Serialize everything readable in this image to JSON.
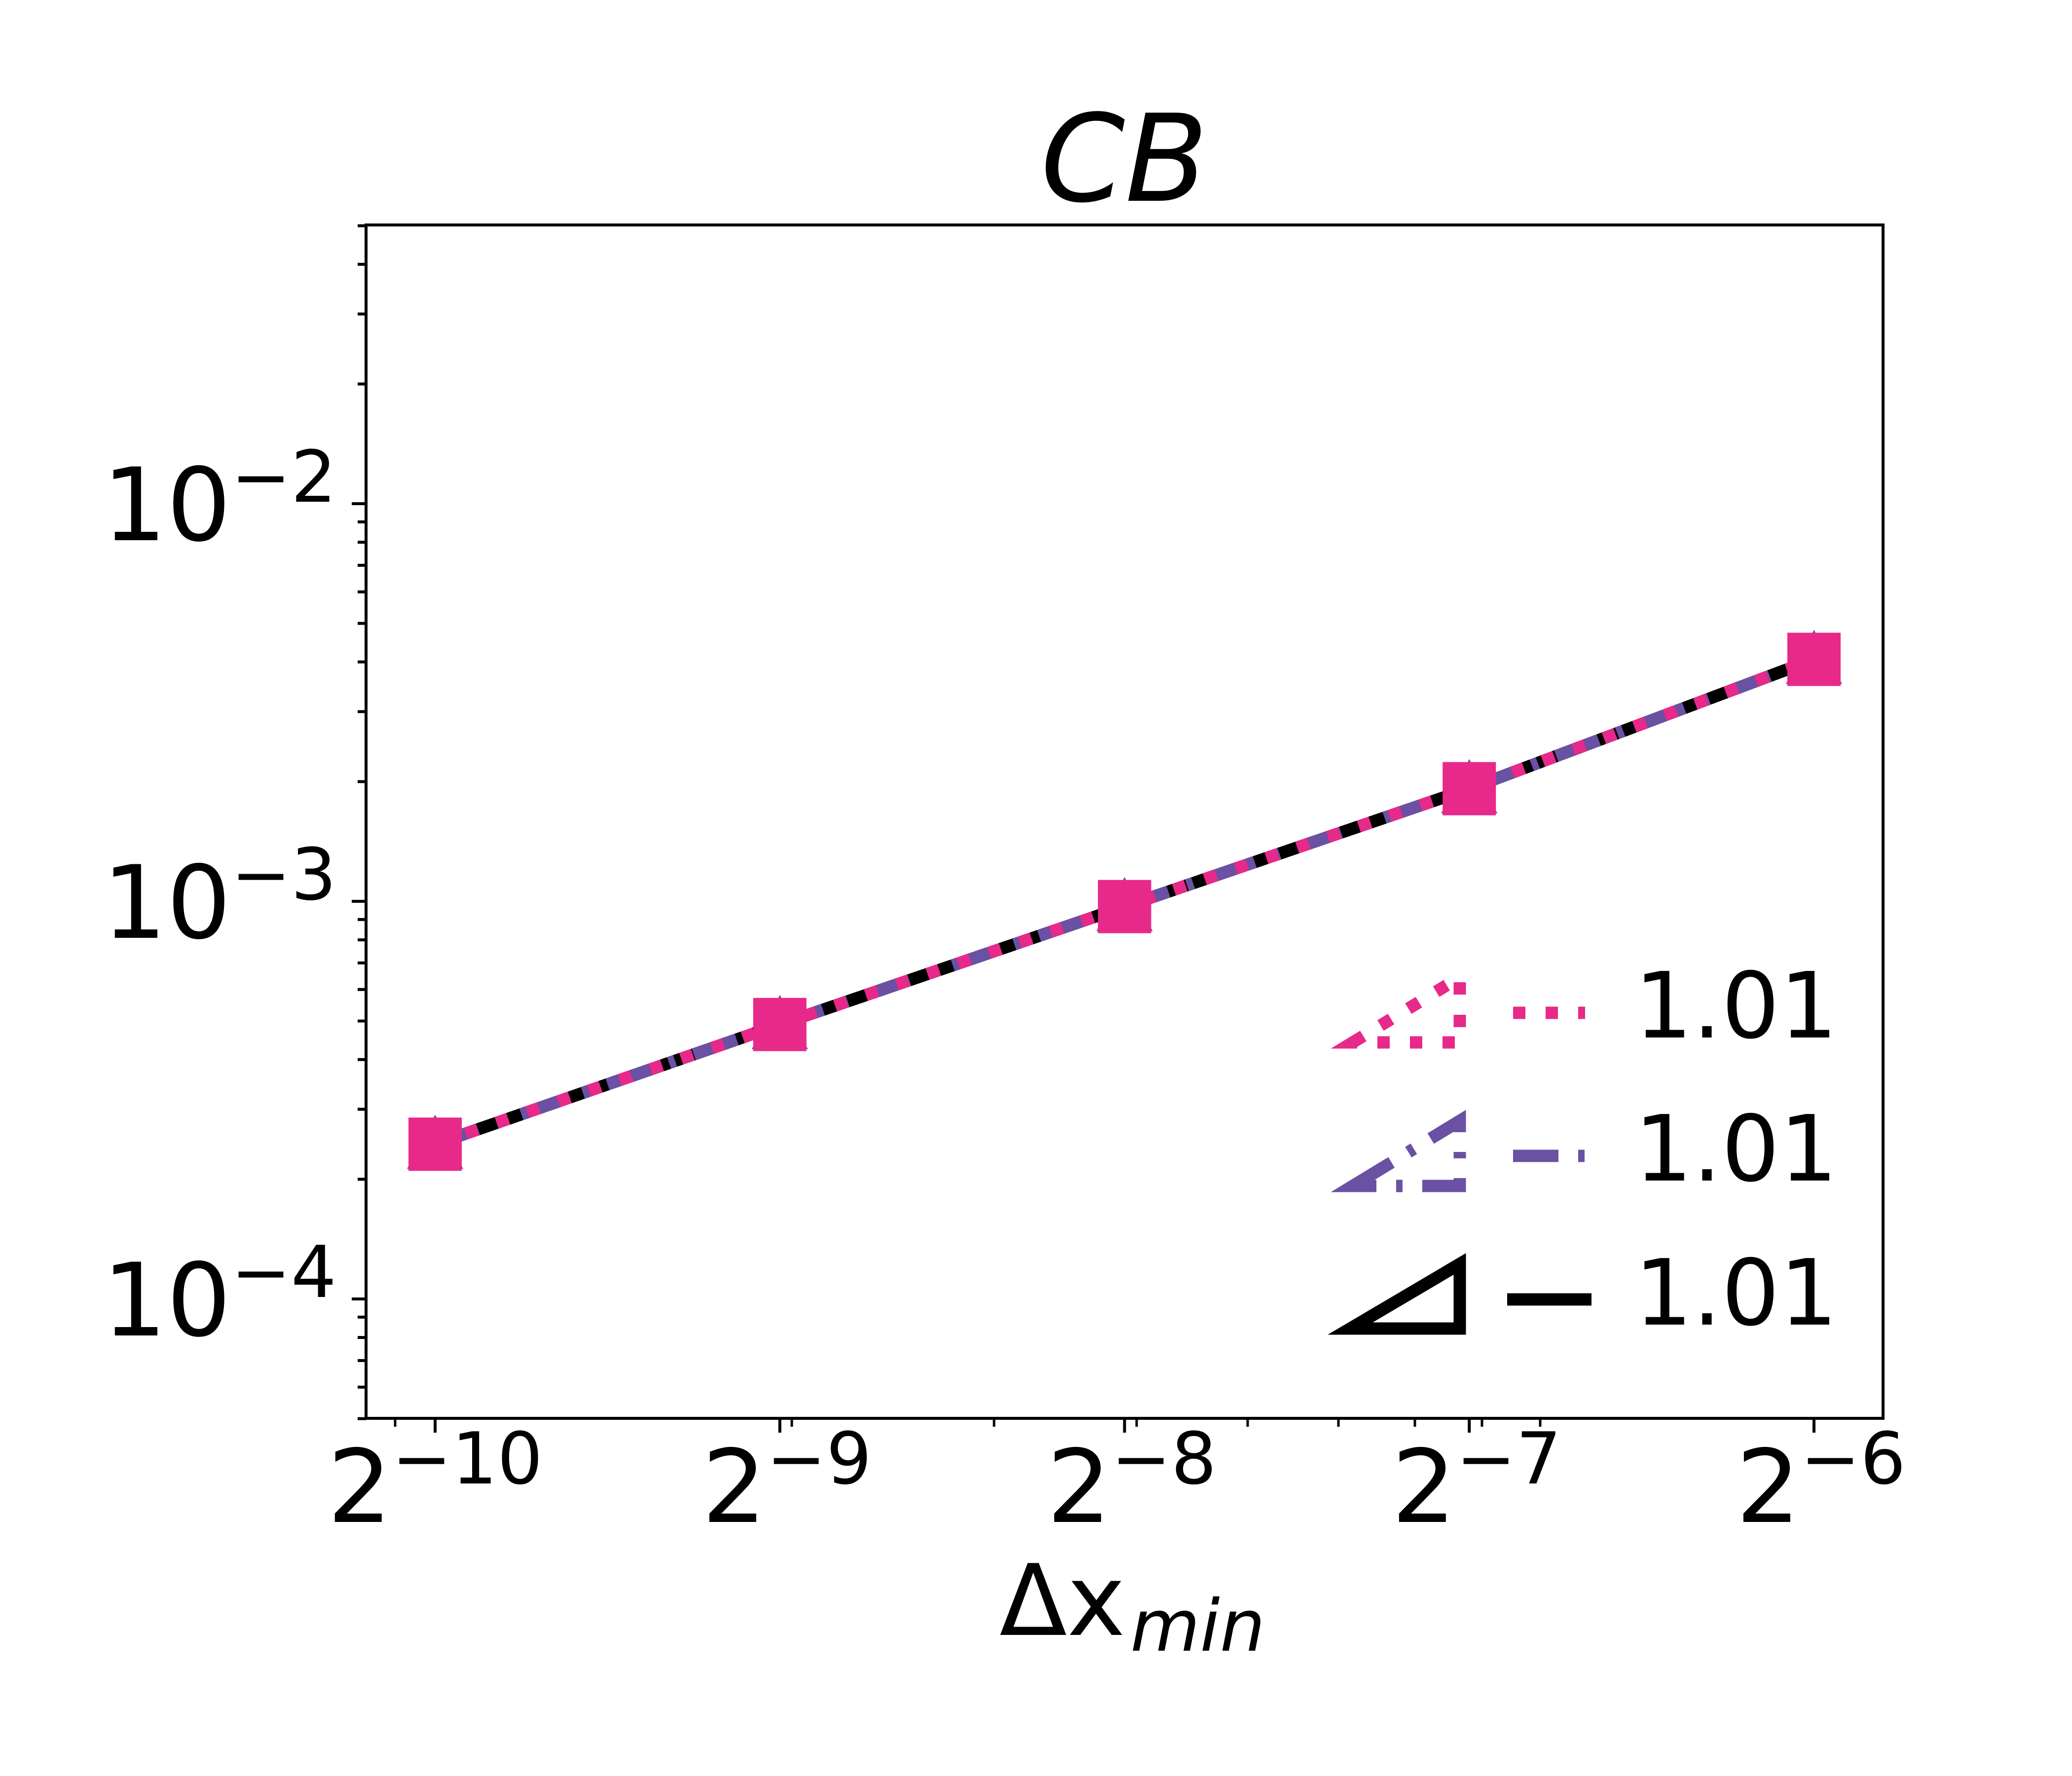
{
  "figure": {
    "title": "CB",
    "xlabel": {
      "main": "Δx",
      "subscript": "min"
    },
    "ylabel": ""
  },
  "colors": {
    "pink": "#E7298A",
    "purple": "#6A51A3",
    "black": "#000000",
    "axes": "#000000",
    "background": "#FFFFFF"
  },
  "chart_data": {
    "type": "line",
    "title": "CB",
    "xlabel": "Δx_min",
    "ylabel": "",
    "xscale": "log2",
    "yscale": "log10",
    "x": [
      0.0009765625,
      0.001953125,
      0.00390625,
      0.0078125,
      0.015625
    ],
    "x_tick_labels": [
      {
        "base": "2",
        "exp": "−10"
      },
      {
        "base": "2",
        "exp": "−9"
      },
      {
        "base": "2",
        "exp": "−8"
      },
      {
        "base": "2",
        "exp": "−7"
      },
      {
        "base": "2",
        "exp": "−6"
      }
    ],
    "y_tick_labels": [
      {
        "value": 0.01,
        "base": "10",
        "exp": "−2"
      },
      {
        "value": 0.001,
        "base": "10",
        "exp": "−3"
      },
      {
        "value": 0.0001,
        "base": "10",
        "exp": "−4"
      }
    ],
    "xlim_log2": [
      -10.2,
      -5.8
    ],
    "ylim": [
      5e-05,
      0.05
    ],
    "grid": false,
    "series": [
      {
        "name": "solid-black",
        "color": "#000000",
        "linestyle": "solid",
        "marker": "circle",
        "values": [
          0.000245,
          0.00049,
          0.00097,
          0.00192,
          0.00406
        ]
      },
      {
        "name": "dashed-purple",
        "color": "#6A51A3",
        "linestyle": "dashed",
        "marker": "triangle",
        "values": [
          0.000245,
          0.00049,
          0.00097,
          0.00192,
          0.00406
        ]
      },
      {
        "name": "dotted-pink",
        "color": "#E7298A",
        "linestyle": "dotted",
        "marker": "square",
        "values": [
          0.000245,
          0.00049,
          0.00097,
          0.00192,
          0.00406
        ]
      }
    ],
    "legend": {
      "position": "lower right",
      "entries": [
        {
          "label": "1.01",
          "color": "#E7298A",
          "linestyle": "dotted",
          "icon": "slope-triangle"
        },
        {
          "label": "1.01",
          "color": "#6A51A3",
          "linestyle": "dashed",
          "icon": "slope-triangle"
        },
        {
          "label": "1.01",
          "color": "#000000",
          "linestyle": "solid",
          "icon": "slope-triangle"
        }
      ]
    }
  },
  "legend": {
    "entries": [
      {
        "label": "1.01"
      },
      {
        "label": "1.01"
      },
      {
        "label": "1.01"
      }
    ]
  }
}
